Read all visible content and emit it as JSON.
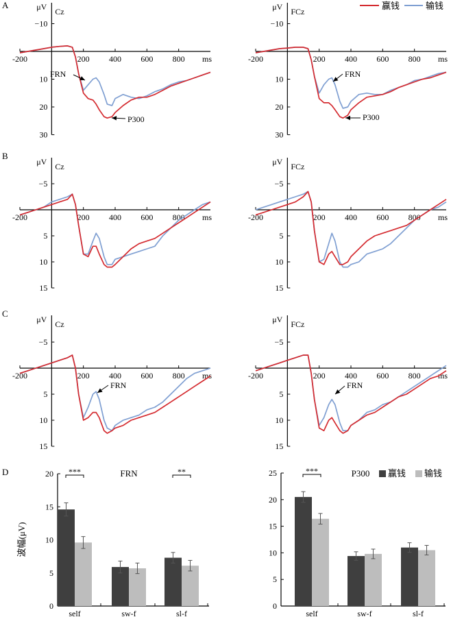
{
  "legend": {
    "win": "赢钱",
    "loss": "输钱"
  },
  "colors": {
    "win": "#d42a2f",
    "loss": "#7f9fd2",
    "bar_win": "#3f3f3f",
    "bar_loss": "#bdbdbd",
    "axis": "#000000"
  },
  "panel_letters": [
    "A",
    "B",
    "C",
    "D"
  ],
  "chart_data": [
    {
      "type": "line",
      "panel": "A",
      "electrode": "Cz",
      "xlabel": "ms",
      "ylabel": "μV",
      "y_inverted": true,
      "xlim": [
        -200,
        1000
      ],
      "ylim": [
        -15,
        30
      ],
      "x_ticks": [
        -200,
        200,
        400,
        600,
        800
      ],
      "y_ticks": [
        -10,
        10,
        20,
        30
      ],
      "x": [
        -200,
        -150,
        -100,
        -50,
        0,
        50,
        100,
        130,
        150,
        170,
        200,
        230,
        260,
        280,
        300,
        330,
        350,
        380,
        400,
        450,
        500,
        550,
        600,
        650,
        700,
        750,
        800,
        850,
        900,
        950,
        1000
      ],
      "series": [
        {
          "name": "赢钱",
          "values": [
            0.5,
            0,
            -0.5,
            -1,
            -1.5,
            -1.8,
            -2,
            -1.5,
            2,
            8,
            15,
            17,
            17.5,
            19,
            21,
            23.5,
            24,
            23.5,
            22,
            19.5,
            17.5,
            16.5,
            16.5,
            15.5,
            14,
            12.5,
            11.5,
            10.5,
            9.5,
            8.5,
            7.5
          ]
        },
        {
          "name": "输钱",
          "values": [
            0.5,
            0,
            -0.5,
            -1,
            -1.5,
            -1.8,
            -2,
            -1.5,
            2,
            8,
            14,
            12,
            10,
            9.5,
            11,
            15.5,
            19,
            19.5,
            17,
            15.5,
            16.5,
            17,
            16,
            14.5,
            13.5,
            12,
            11,
            10.5,
            9.5,
            8.5,
            7.5
          ]
        }
      ],
      "annotations": [
        "FRN",
        "P300"
      ]
    },
    {
      "type": "line",
      "panel": "A",
      "electrode": "FCz",
      "xlabel": "ms",
      "ylabel": "μV",
      "y_inverted": true,
      "xlim": [
        -200,
        1000
      ],
      "ylim": [
        -15,
        30
      ],
      "x_ticks": [
        -200,
        200,
        400,
        600,
        800
      ],
      "y_ticks": [
        -10,
        10,
        20,
        30
      ],
      "x": [
        -200,
        -150,
        -100,
        -50,
        0,
        50,
        100,
        130,
        150,
        170,
        200,
        230,
        260,
        280,
        300,
        330,
        350,
        380,
        400,
        450,
        500,
        550,
        600,
        650,
        700,
        750,
        800,
        850,
        900,
        950,
        1000
      ],
      "series": [
        {
          "name": "赢钱",
          "values": [
            0.5,
            0,
            -0.5,
            -1,
            -1.2,
            -1.5,
            -1.5,
            -1,
            3,
            9,
            17,
            18.5,
            18.5,
            19.5,
            21,
            23.5,
            24,
            23,
            21,
            18.5,
            16.5,
            16,
            15.5,
            14.5,
            13,
            12,
            11,
            10,
            9.5,
            8.5,
            7.5
          ]
        },
        {
          "name": "输钱",
          "values": [
            0.5,
            0,
            -0.5,
            -1,
            -1.2,
            -1.5,
            -1.5,
            -1,
            3,
            9,
            15,
            12,
            10,
            9.5,
            12,
            18,
            20.5,
            20,
            18,
            15.5,
            15,
            15.5,
            15.5,
            14,
            13,
            12,
            10.5,
            10,
            9,
            8,
            7.5
          ]
        }
      ],
      "annotations": [
        "FRN",
        "P300"
      ]
    },
    {
      "type": "line",
      "panel": "B",
      "electrode": "Cz",
      "xlabel": "ms",
      "ylabel": "μV",
      "y_inverted": true,
      "xlim": [
        -200,
        1000
      ],
      "ylim": [
        -10,
        15
      ],
      "x_ticks": [
        -200,
        200,
        400,
        600,
        800
      ],
      "y_ticks": [
        -5,
        5,
        10,
        15
      ],
      "x": [
        -200,
        -150,
        -100,
        -50,
        0,
        50,
        100,
        130,
        150,
        170,
        200,
        230,
        260,
        280,
        300,
        330,
        350,
        380,
        400,
        450,
        500,
        550,
        600,
        650,
        700,
        750,
        800,
        850,
        900,
        950,
        1000
      ],
      "series": [
        {
          "name": "赢钱",
          "values": [
            1,
            0.5,
            0,
            -0.5,
            -1,
            -1.5,
            -2,
            -3,
            -1,
            3,
            8.5,
            9,
            7,
            7,
            8.5,
            10.5,
            11,
            11,
            10.5,
            9,
            7.5,
            6.5,
            6,
            5.5,
            4.5,
            3.5,
            2.5,
            1.5,
            0.5,
            -0.5,
            -1.5
          ]
        },
        {
          "name": "输钱",
          "values": [
            1,
            0.5,
            0,
            -0.5,
            -1.5,
            -2,
            -2.5,
            -3,
            -1,
            3,
            8.5,
            8.5,
            6,
            4.5,
            5.5,
            9,
            10.5,
            10.5,
            9.5,
            9,
            8.5,
            8,
            7.5,
            7,
            5,
            3.5,
            2,
            1,
            0,
            -1,
            -1.5
          ]
        }
      ],
      "annotations": []
    },
    {
      "type": "line",
      "panel": "B",
      "electrode": "FCz",
      "xlabel": "ms",
      "ylabel": "μV",
      "y_inverted": true,
      "xlim": [
        -200,
        1000
      ],
      "ylim": [
        -10,
        15
      ],
      "x_ticks": [
        -200,
        200,
        400,
        600,
        800
      ],
      "y_ticks": [
        -5,
        5,
        10,
        15
      ],
      "x": [
        -200,
        -150,
        -100,
        -50,
        0,
        50,
        100,
        130,
        150,
        170,
        200,
        230,
        260,
        280,
        300,
        330,
        350,
        380,
        400,
        450,
        500,
        550,
        600,
        650,
        700,
        750,
        800,
        850,
        900,
        950,
        1000
      ],
      "series": [
        {
          "name": "赢钱",
          "values": [
            1,
            0.5,
            0,
            -0.5,
            -1,
            -1.5,
            -2.5,
            -3.5,
            -1.5,
            4,
            10,
            10.5,
            8.5,
            8,
            9,
            10.5,
            10.5,
            10,
            9,
            7.5,
            6,
            5,
            4.5,
            4,
            3.5,
            3,
            2,
            1,
            0,
            -1,
            -2
          ]
        },
        {
          "name": "输钱",
          "values": [
            0,
            -0.5,
            -1,
            -1.5,
            -2,
            -2.5,
            -3,
            -3.5,
            -1.5,
            4,
            10,
            9.5,
            6.5,
            4.5,
            6,
            10,
            11,
            11,
            10.5,
            10,
            8.5,
            8,
            7.5,
            6.5,
            5,
            3.5,
            2,
            1,
            0,
            -0.5,
            -1.5
          ]
        }
      ],
      "annotations": []
    },
    {
      "type": "line",
      "panel": "C",
      "electrode": "Cz",
      "xlabel": "ms",
      "ylabel": "μV",
      "y_inverted": true,
      "xlim": [
        -200,
        1000
      ],
      "ylim": [
        -10,
        15
      ],
      "x_ticks": [
        -200,
        200,
        400,
        600,
        800
      ],
      "y_ticks": [
        -5,
        5,
        10,
        15
      ],
      "x": [
        -200,
        -150,
        -100,
        -50,
        0,
        50,
        100,
        130,
        150,
        170,
        200,
        230,
        260,
        280,
        300,
        330,
        350,
        380,
        400,
        450,
        500,
        550,
        600,
        650,
        700,
        750,
        800,
        850,
        900,
        950,
        1000
      ],
      "series": [
        {
          "name": "赢钱",
          "values": [
            1,
            0.5,
            0,
            -0.5,
            -1,
            -1.5,
            -2,
            -2.5,
            0,
            5,
            10,
            9.5,
            8.5,
            8.5,
            9.5,
            12,
            12.5,
            12,
            11.5,
            11,
            10,
            9.5,
            9,
            8.5,
            7.5,
            6.5,
            5.5,
            4.5,
            3.5,
            2.5,
            1.5
          ]
        },
        {
          "name": "输钱",
          "values": [
            1,
            0.5,
            0,
            -0.5,
            -1,
            -1.5,
            -2,
            -2.5,
            0,
            5,
            9.5,
            7.5,
            5,
            4.5,
            6,
            10,
            11.5,
            12,
            11,
            10,
            9.5,
            9,
            8,
            7.5,
            6.5,
            5,
            3.5,
            2,
            1,
            0.5,
            0
          ]
        }
      ],
      "annotations": [
        "FRN"
      ]
    },
    {
      "type": "line",
      "panel": "C",
      "electrode": "FCz",
      "xlabel": "ms",
      "ylabel": "μV",
      "y_inverted": true,
      "xlim": [
        -200,
        1000
      ],
      "ylim": [
        -10,
        15
      ],
      "x_ticks": [
        -200,
        200,
        400,
        600,
        800
      ],
      "y_ticks": [
        -5,
        5,
        10,
        15
      ],
      "x": [
        -200,
        -150,
        -100,
        -50,
        0,
        50,
        100,
        130,
        150,
        170,
        200,
        230,
        260,
        280,
        300,
        330,
        350,
        380,
        400,
        450,
        500,
        550,
        600,
        650,
        700,
        750,
        800,
        850,
        900,
        950,
        1000
      ],
      "series": [
        {
          "name": "赢钱",
          "values": [
            0.5,
            0,
            -0.5,
            -1,
            -1.5,
            -2,
            -2.5,
            -2.5,
            1,
            6,
            11.5,
            12,
            10,
            9.5,
            10.5,
            12,
            12.5,
            12,
            11,
            10,
            9,
            8.5,
            7.5,
            6.5,
            5.5,
            5,
            4,
            3,
            2,
            1.5,
            0.5
          ]
        },
        {
          "name": "输钱",
          "values": [
            0.5,
            0,
            -0.5,
            -1,
            -1.5,
            -2,
            -2.5,
            -2.5,
            1,
            6,
            11,
            9.5,
            7,
            6,
            7,
            10.5,
            12,
            12,
            11,
            10,
            8.5,
            8,
            7,
            6.5,
            5.5,
            4.5,
            3.5,
            2.5,
            1.5,
            0.5,
            -0.5
          ]
        }
      ],
      "annotations": [
        "FRN"
      ]
    },
    {
      "type": "bar",
      "panel": "D",
      "component": "FRN",
      "ylabel": "波幅(μV)",
      "ylim": [
        0,
        20
      ],
      "y_ticks": [
        0,
        5,
        10,
        15,
        20
      ],
      "categories": [
        "self",
        "sw-f",
        "sl-f"
      ],
      "series": [
        {
          "name": "赢钱",
          "values": [
            14.6,
            5.9,
            7.3
          ],
          "errors": [
            1.0,
            0.9,
            0.8
          ]
        },
        {
          "name": "输钱",
          "values": [
            9.6,
            5.7,
            6.1
          ],
          "errors": [
            0.9,
            0.8,
            0.8
          ]
        }
      ],
      "significance": [
        {
          "category": "self",
          "label": "***"
        },
        {
          "category": "sl-f",
          "label": "**"
        }
      ]
    },
    {
      "type": "bar",
      "panel": "D",
      "component": "P300",
      "ylabel": "",
      "ylim": [
        0,
        25
      ],
      "y_ticks": [
        0,
        5,
        10,
        15,
        20,
        25
      ],
      "categories": [
        "self",
        "sw-f",
        "sl-f"
      ],
      "series": [
        {
          "name": "赢钱",
          "values": [
            20.5,
            9.4,
            11.0
          ],
          "errors": [
            1.0,
            0.8,
            0.9
          ]
        },
        {
          "name": "输钱",
          "values": [
            16.4,
            9.8,
            10.5
          ],
          "errors": [
            1.0,
            0.9,
            0.9
          ]
        }
      ],
      "significance": [
        {
          "category": "self",
          "label": "***"
        }
      ]
    }
  ]
}
